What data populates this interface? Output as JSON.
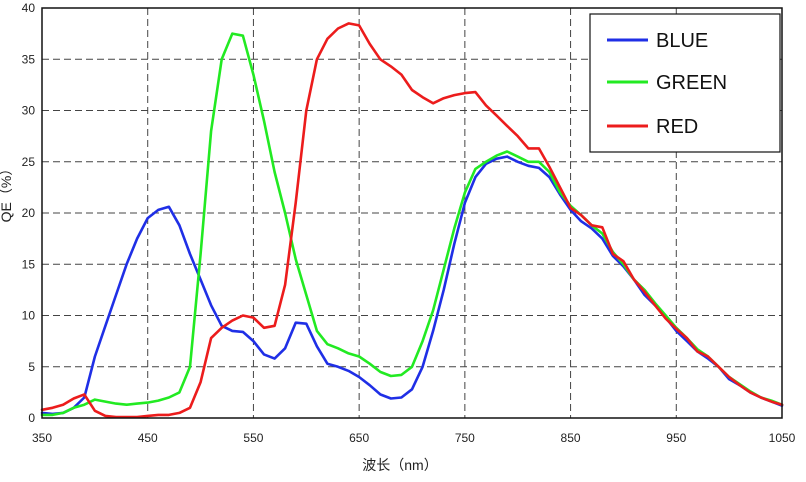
{
  "chart_data": {
    "type": "line",
    "xlabel": "波长（nm）",
    "ylabel": "QE（%）",
    "xlim": [
      350,
      1050
    ],
    "ylim": [
      0,
      40
    ],
    "xticks": [
      350,
      450,
      550,
      650,
      750,
      850,
      950,
      1050
    ],
    "yticks": [
      0,
      5,
      10,
      15,
      20,
      25,
      30,
      35,
      40
    ],
    "grid": true,
    "legend": "top-right",
    "x": [
      350,
      360,
      370,
      380,
      390,
      400,
      410,
      420,
      430,
      440,
      450,
      460,
      470,
      480,
      490,
      500,
      510,
      520,
      530,
      540,
      550,
      560,
      570,
      580,
      590,
      600,
      610,
      620,
      630,
      640,
      650,
      660,
      670,
      680,
      690,
      700,
      710,
      720,
      730,
      740,
      750,
      760,
      770,
      780,
      790,
      800,
      810,
      820,
      830,
      840,
      850,
      860,
      870,
      880,
      890,
      900,
      910,
      920,
      930,
      940,
      950,
      960,
      970,
      980,
      990,
      1000,
      1010,
      1020,
      1030,
      1040,
      1050
    ],
    "series": [
      {
        "name": "BLUE",
        "color": "#1f2fe6",
        "values": [
          0.5,
          0.4,
          0.5,
          1.0,
          2.0,
          6.0,
          9.0,
          12.0,
          15.0,
          17.5,
          19.5,
          20.3,
          20.6,
          18.8,
          16.0,
          13.5,
          11.0,
          9.0,
          8.5,
          8.4,
          7.5,
          6.2,
          5.8,
          6.8,
          9.3,
          9.2,
          7.0,
          5.3,
          5.0,
          4.6,
          4.0,
          3.2,
          2.3,
          1.9,
          2.0,
          2.8,
          5.0,
          8.5,
          12.5,
          17.0,
          21.0,
          23.5,
          24.8,
          25.3,
          25.5,
          25.0,
          24.6,
          24.4,
          23.5,
          21.8,
          20.3,
          19.2,
          18.5,
          17.5,
          15.8,
          14.8,
          13.5,
          12.0,
          11.0,
          9.8,
          8.5,
          7.5,
          6.5,
          5.8,
          5.0,
          3.8,
          3.2,
          2.5,
          2.0,
          1.6,
          1.2
        ]
      },
      {
        "name": "GREEN",
        "color": "#22ea22",
        "values": [
          0.3,
          0.3,
          0.5,
          1.0,
          1.3,
          1.8,
          1.6,
          1.4,
          1.3,
          1.4,
          1.5,
          1.7,
          2.0,
          2.5,
          5.0,
          16.0,
          28.0,
          35.0,
          37.5,
          37.3,
          33.5,
          29.0,
          24.0,
          20.0,
          15.5,
          12.0,
          8.5,
          7.2,
          6.8,
          6.3,
          6.0,
          5.3,
          4.5,
          4.1,
          4.2,
          5.0,
          7.5,
          10.5,
          14.5,
          18.5,
          22.0,
          24.3,
          25.0,
          25.6,
          26.0,
          25.5,
          25.0,
          25.0,
          24.0,
          22.0,
          20.7,
          19.8,
          18.8,
          18.0,
          16.2,
          15.0,
          13.5,
          12.5,
          11.2,
          10.0,
          8.8,
          7.8,
          6.7,
          6.0,
          5.0,
          4.0,
          3.3,
          2.6,
          2.0,
          1.7,
          1.3
        ]
      },
      {
        "name": "RED",
        "color": "#ec1c1c",
        "values": [
          0.8,
          1.0,
          1.3,
          1.9,
          2.3,
          0.7,
          0.2,
          0.1,
          0.1,
          0.1,
          0.2,
          0.3,
          0.3,
          0.5,
          1.0,
          3.5,
          7.8,
          8.8,
          9.5,
          10.0,
          9.8,
          8.8,
          9.0,
          13.0,
          21.0,
          30.0,
          35.0,
          37.0,
          38.0,
          38.5,
          38.3,
          36.5,
          35.0,
          34.3,
          33.5,
          32.0,
          31.3,
          30.7,
          31.2,
          31.5,
          31.7,
          31.8,
          30.5,
          29.5,
          28.5,
          27.5,
          26.3,
          26.3,
          24.5,
          22.5,
          20.5,
          19.8,
          18.8,
          18.6,
          16.0,
          15.3,
          13.5,
          12.3,
          11.0,
          9.7,
          8.7,
          7.8,
          6.5,
          6.0,
          5.0,
          4.0,
          3.2,
          2.5,
          2.0,
          1.6,
          1.3
        ]
      }
    ]
  }
}
